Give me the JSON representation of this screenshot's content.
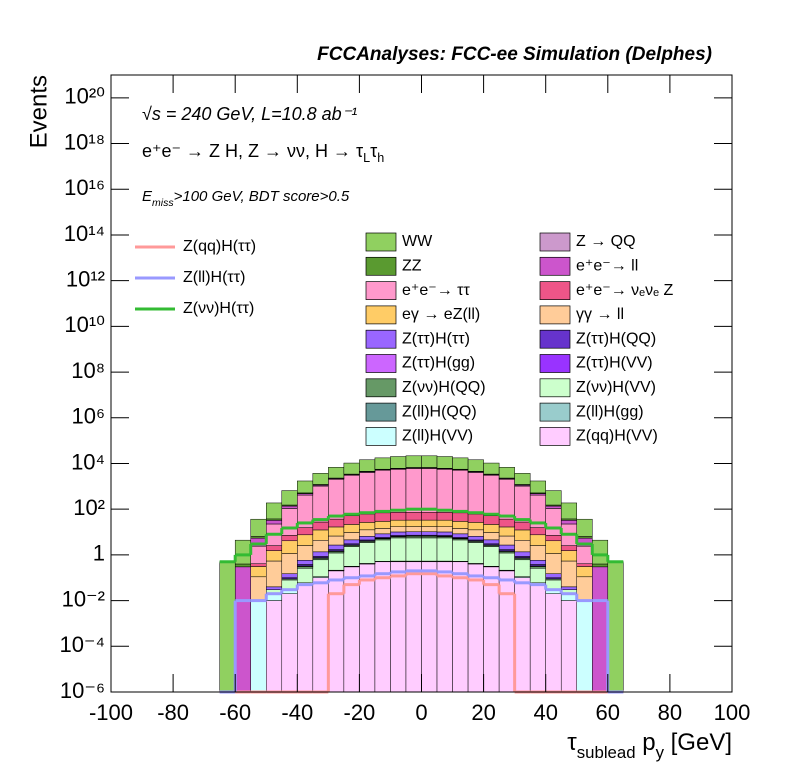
{
  "chart_data": {
    "type": "histogram",
    "title": "FCCAnalyses: FCC-ee Simulation (Delphes)",
    "ylabel": "Events",
    "xlabel": [
      "τ",
      "sublead",
      " p",
      "y",
      " [GeV]"
    ],
    "annotations": [
      [
        "√s = 240 GeV, L=10.8 ab⁻¹"
      ],
      [
        "e⁺e⁻ → Z H, Z → νν, H → τ",
        "L",
        "τ",
        "h"
      ],
      [
        "E",
        "miss",
        ">100 GeV, BDT score>0.5"
      ]
    ],
    "log_y": true,
    "stacked": true,
    "xlim": [
      -100,
      100
    ],
    "xticks": [
      -100,
      -80,
      -60,
      -40,
      -20,
      0,
      20,
      40,
      60,
      80,
      100
    ],
    "ylim": [
      1e-06,
      1e+21
    ],
    "yticks": [
      {
        "value": 1e-06,
        "label": "10⁻⁶"
      },
      {
        "value": 0.0001,
        "label": "10⁻⁴"
      },
      {
        "value": 0.01,
        "label": "10⁻²"
      },
      1,
      {
        "value": 100,
        "label": "10²"
      },
      {
        "value": 10000,
        "label": "10⁴"
      },
      {
        "value": 1000000,
        "label": "10⁶"
      },
      {
        "value": 100000000,
        "label": "10⁸"
      },
      {
        "value": 10000000000,
        "label": "10¹⁰"
      },
      {
        "value": 1000000000000,
        "label": "10¹²"
      },
      {
        "value": 100000000000000,
        "label": "10¹⁴"
      },
      {
        "value": 10000000000000000,
        "label": "10¹⁶"
      },
      {
        "value": 1000000000000000000,
        "label": "10¹⁸"
      },
      {
        "value": 100000000000000000000,
        "label": "10²⁰"
      }
    ],
    "bins": [
      -65,
      -60,
      -55,
      -50,
      -45,
      -40,
      -35,
      -30,
      -25,
      -20,
      -15,
      -10,
      -5,
      0,
      5,
      10,
      15,
      20,
      25,
      30,
      35,
      40,
      45,
      50,
      55,
      60,
      65
    ],
    "series": [
      {
        "name": "WW",
        "color": "#90d060",
        "values": [
          0.5,
          4,
          30,
          150,
          500,
          1200,
          2500,
          4500,
          7000,
          10000,
          12000,
          14000,
          15000,
          15000,
          14000,
          12000,
          10000,
          7000,
          4500,
          2500,
          1200,
          500,
          150,
          30,
          4,
          0.5
        ]
      },
      {
        "name": "Z → QQ",
        "color": "#cc99cc",
        "values": [
          0,
          0,
          0,
          0,
          0.1,
          0.5,
          1,
          2,
          3,
          5,
          6,
          8,
          10,
          10,
          8,
          6,
          5,
          3,
          2,
          1,
          0.5,
          0.1,
          0,
          0,
          0,
          0
        ]
      },
      {
        "name": "ZZ",
        "color": "#5a9a30",
        "values": [
          0,
          0.1,
          1,
          5,
          15,
          40,
          80,
          120,
          180,
          220,
          260,
          280,
          300,
          300,
          280,
          260,
          220,
          180,
          120,
          80,
          40,
          15,
          5,
          1,
          0.1,
          0
        ]
      },
      {
        "name": "e⁺e⁻→ ll",
        "color": "#cc55cc",
        "values": [
          0,
          0.3,
          3,
          10,
          30,
          60,
          100,
          150,
          200,
          250,
          280,
          300,
          300,
          300,
          300,
          280,
          250,
          200,
          150,
          100,
          60,
          30,
          10,
          3,
          0.3,
          0
        ]
      },
      {
        "name": "e⁺e⁻→ ττ",
        "color": "#ff99cc",
        "values": [
          0,
          0,
          2,
          20,
          100,
          400,
          1000,
          2000,
          3000,
          4000,
          5000,
          5500,
          6000,
          6000,
          5500,
          5000,
          4000,
          3000,
          2000,
          1000,
          400,
          100,
          20,
          2,
          0,
          0
        ]
      },
      {
        "name": "e⁺e⁻→ νₑνₑ Z",
        "color": "#ee5588",
        "values": [
          0,
          0,
          0.1,
          1,
          3,
          8,
          15,
          20,
          30,
          35,
          40,
          40,
          40,
          40,
          40,
          40,
          35,
          30,
          20,
          15,
          8,
          3,
          1,
          0.1,
          0,
          0
        ]
      },
      {
        "name": "eγ → eZ(ll)",
        "color": "#ffcc66",
        "values": [
          0,
          0,
          0.2,
          1,
          3,
          5,
          8,
          10,
          12,
          14,
          15,
          16,
          16,
          16,
          16,
          15,
          14,
          12,
          10,
          8,
          5,
          3,
          1,
          0.2,
          0,
          0
        ]
      },
      {
        "name": "γγ → ll",
        "color": "#ffcc99",
        "values": [
          0,
          0,
          0.1,
          0.5,
          1,
          2,
          3,
          4,
          5,
          6,
          6,
          7,
          7,
          7,
          7,
          6,
          6,
          5,
          4,
          3,
          2,
          1,
          0.5,
          0.1,
          0,
          0
        ]
      },
      {
        "name": "Z(ττ)H(ττ)",
        "color": "#9966ff",
        "values": [
          0,
          0,
          0,
          0.01,
          0.05,
          0.2,
          0.5,
          1,
          1.5,
          2,
          2.5,
          3,
          3,
          3,
          3,
          2.5,
          2,
          1.5,
          1,
          0.5,
          0.2,
          0.05,
          0.01,
          0,
          0,
          0
        ]
      },
      {
        "name": "Z(ττ)H(QQ)",
        "color": "#6633cc",
        "values": [
          0,
          0,
          0,
          0,
          0.01,
          0.05,
          0.1,
          0.2,
          0.3,
          0.4,
          0.5,
          0.5,
          0.5,
          0.5,
          0.5,
          0.5,
          0.4,
          0.3,
          0.2,
          0.1,
          0.05,
          0.01,
          0,
          0,
          0,
          0
        ]
      },
      {
        "name": "Z(ττ)H(gg)",
        "color": "#cc66ff",
        "values": [
          0,
          0,
          0,
          0,
          0,
          0.01,
          0.03,
          0.05,
          0.08,
          0.1,
          0.12,
          0.15,
          0.15,
          0.15,
          0.15,
          0.12,
          0.1,
          0.08,
          0.05,
          0.03,
          0.01,
          0,
          0,
          0,
          0,
          0
        ]
      },
      {
        "name": "Z(ττ)H(VV)",
        "color": "#9933ff",
        "values": [
          0,
          0,
          0,
          0,
          0,
          0.01,
          0.02,
          0.04,
          0.06,
          0.08,
          0.1,
          0.1,
          0.1,
          0.1,
          0.1,
          0.1,
          0.08,
          0.06,
          0.04,
          0.02,
          0.01,
          0,
          0,
          0,
          0,
          0
        ]
      },
      {
        "name": "Z(νν)H(QQ)",
        "color": "#669966",
        "values": [
          0,
          0,
          0,
          0,
          0.01,
          0.05,
          0.1,
          0.2,
          0.3,
          0.5,
          0.6,
          0.8,
          1,
          1,
          0.8,
          0.6,
          0.5,
          0.3,
          0.2,
          0.1,
          0.05,
          0.01,
          0,
          0,
          0,
          0
        ]
      },
      {
        "name": "Z(νν)H(VV)",
        "color": "#ccffcc",
        "values": [
          0,
          0,
          0,
          0.01,
          0.05,
          0.2,
          0.5,
          1,
          2,
          3,
          4,
          5,
          5,
          5,
          5,
          4,
          3,
          2,
          1,
          0.5,
          0.2,
          0.05,
          0.01,
          0,
          0,
          0
        ]
      },
      {
        "name": "Z(ll)H(QQ)",
        "color": "#669999",
        "values": [
          0,
          0,
          0,
          0,
          0,
          0,
          0.001,
          0.003,
          0.005,
          0.01,
          0.01,
          0.02,
          0.02,
          0.02,
          0.02,
          0.01,
          0.01,
          0.005,
          0.003,
          0.001,
          0,
          0,
          0,
          0,
          0,
          0
        ]
      },
      {
        "name": "Z(ll)H(gg)",
        "color": "#99cccc",
        "values": [
          0,
          0,
          0,
          0,
          0,
          0,
          0,
          0.001,
          0.002,
          0.003,
          0.003,
          0.005,
          0.005,
          0.005,
          0.005,
          0.003,
          0.003,
          0.002,
          0.001,
          0,
          0,
          0,
          0,
          0,
          0,
          0
        ]
      },
      {
        "name": "Z(ll)H(VV)",
        "color": "#ccffff",
        "values": [
          0,
          0,
          0.01,
          0.01,
          0.01,
          0.01,
          0.01,
          0.01,
          0.01,
          0.01,
          0.01,
          0.01,
          0.01,
          0.01,
          0.01,
          0.01,
          0.01,
          0.01,
          0.01,
          0.01,
          0.01,
          0.01,
          0.01,
          0.01,
          0,
          0
        ]
      },
      {
        "name": "Z(qq)H(VV)",
        "color": "#ffccff",
        "values": [
          0,
          0,
          0,
          0.01,
          0.02,
          0.05,
          0.1,
          0.2,
          0.3,
          0.4,
          0.5,
          0.5,
          0.5,
          0.5,
          0.5,
          0.5,
          0.4,
          0.3,
          0.2,
          0.1,
          0.05,
          0.02,
          0.01,
          0,
          0,
          0
        ]
      }
    ],
    "signal_series": [
      {
        "name": "Z(qq)H(ττ)",
        "color": "#ff9999",
        "values": [
          0,
          0,
          0,
          0,
          0,
          0,
          0,
          0.02,
          0.05,
          0.08,
          0.1,
          0.12,
          0.15,
          0.15,
          0.12,
          0.1,
          0.08,
          0.05,
          0.02,
          0,
          0,
          0,
          0,
          0,
          0,
          0
        ]
      },
      {
        "name": "Z(ll)H(ττ)",
        "color": "#9999ff",
        "values": [
          0,
          0.01,
          0.01,
          0.02,
          0.03,
          0.05,
          0.06,
          0.08,
          0.1,
          0.12,
          0.15,
          0.18,
          0.2,
          0.2,
          0.18,
          0.15,
          0.12,
          0.1,
          0.08,
          0.06,
          0.05,
          0.03,
          0.02,
          0.01,
          0.01,
          0
        ]
      },
      {
        "name": "Z(νν)H(ττ)",
        "color": "#33bb33",
        "values": [
          0.5,
          1,
          3,
          8,
          15,
          25,
          35,
          50,
          60,
          70,
          80,
          90,
          100,
          100,
          90,
          80,
          70,
          60,
          50,
          35,
          25,
          15,
          8,
          3,
          1,
          0.5
        ]
      }
    ]
  }
}
